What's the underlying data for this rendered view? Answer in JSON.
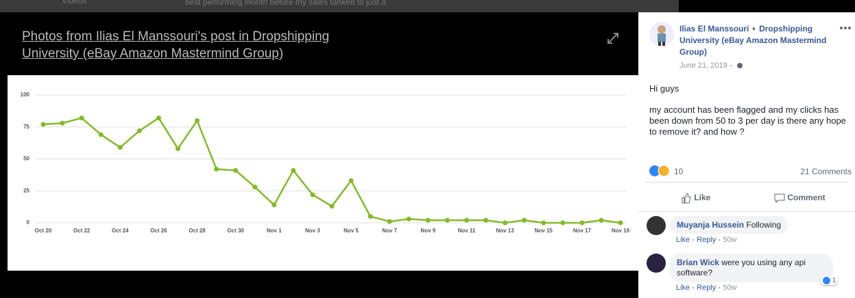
{
  "top_strip": {
    "left": "Videos",
    "text": "best performing month before my sales tanked to just a"
  },
  "lightbox": {
    "title": "Photos from Ilias El Manssouri's post in Dropshipping University (eBay Amazon Mastermind Group)"
  },
  "chart_data": {
    "type": "line",
    "categories": [
      "Oct 20",
      null,
      "Oct 22",
      null,
      "Oct 24",
      null,
      "Oct 26",
      null,
      "Oct 28",
      null,
      "Oct 30",
      null,
      "Nov 1",
      null,
      "Nov 3",
      null,
      "Nov 5",
      null,
      "Nov 7",
      null,
      "Nov 9",
      null,
      "Nov 11",
      null,
      "Nov 13",
      null,
      "Nov 15",
      null,
      "Nov 17",
      null,
      "Nov 19"
    ],
    "values": [
      77,
      78,
      82,
      69,
      59,
      72,
      82,
      58,
      80,
      42,
      41,
      28,
      14,
      41,
      22,
      13,
      33,
      5,
      1,
      3,
      2,
      2,
      2,
      2,
      0,
      2,
      0,
      0,
      0,
      2,
      0
    ],
    "color": "#84b92a",
    "ylim": [
      0,
      100
    ],
    "yticks": [
      0,
      25,
      50,
      75,
      100
    ],
    "grid": true
  },
  "post": {
    "author": "Ilias El Manssouri",
    "group": "Dropshipping University (eBay Amazon Mastermind Group)",
    "date": "June 21, 2019",
    "text": [
      "Hi guys",
      "my account has been flagged and my clicks has been down from 50 to 3 per day is there any hope to remove it? and how ?"
    ],
    "reactions": 10,
    "comments_count": "21 Comments"
  },
  "actions": {
    "like": "Like",
    "comment": "Comment"
  },
  "comments": [
    {
      "author": "Muyanja Hussein",
      "text": "Following",
      "actions": [
        "Like",
        "Reply",
        "50w"
      ]
    },
    {
      "author": "Brian Wick",
      "text": "were you using any api software?",
      "actions": [
        "Like",
        "Reply",
        "50w"
      ],
      "reactions": 1
    }
  ]
}
